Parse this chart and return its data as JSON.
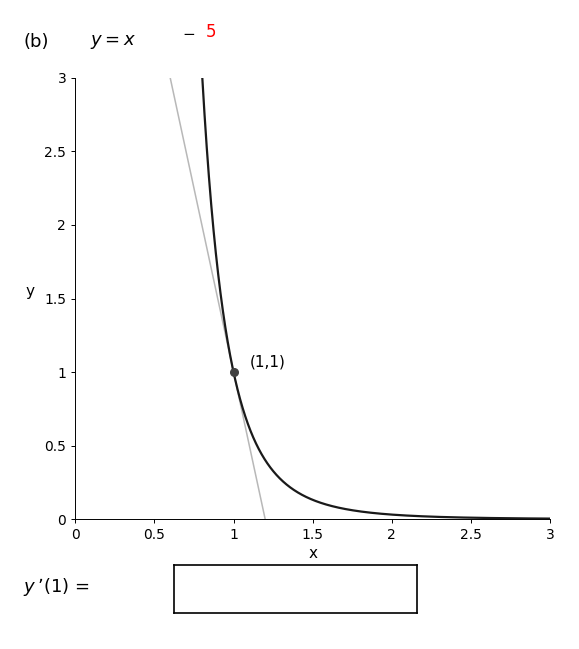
{
  "xlabel": "x",
  "ylabel": "y",
  "xlim": [
    0,
    3
  ],
  "ylim": [
    0,
    3
  ],
  "xticks": [
    0,
    0.5,
    1.0,
    1.5,
    2.0,
    2.5,
    3.0
  ],
  "yticks": [
    0,
    0.5,
    1.0,
    1.5,
    2.0,
    2.5,
    3.0
  ],
  "curve_color": "#1a1a1a",
  "tangent_color": "#b8b8b8",
  "tangent_slope": -5,
  "tangent_point_x": 1.0,
  "tangent_point_y": 1.0,
  "point_color": "#404040",
  "point_label": "(1,1)",
  "background_color": "#ffffff",
  "curve_linewidth": 1.6,
  "tangent_linewidth": 1.1,
  "title_b": "(b)",
  "title_exp_color": "red",
  "xtick_labels": [
    "0",
    "0.5",
    "1",
    "1.5",
    "2",
    "2.5",
    "3"
  ],
  "ytick_labels": [
    "0",
    "0.5",
    "1",
    "1.5",
    "2",
    "2.5",
    "3"
  ]
}
